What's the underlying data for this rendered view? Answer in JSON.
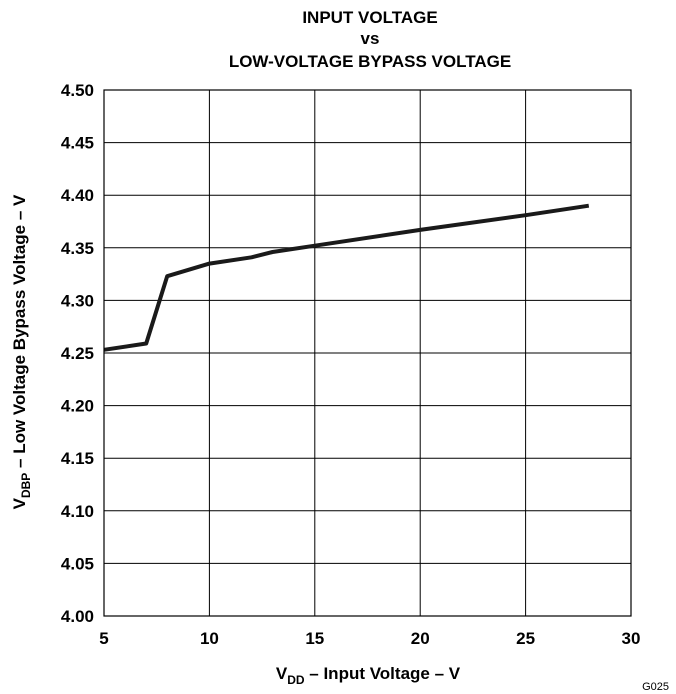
{
  "chart_data": {
    "type": "line",
    "title_lines": [
      "INPUT VOLTAGE",
      "vs",
      "LOW-VOLTAGE BYPASS VOLTAGE"
    ],
    "xlabel": {
      "main": "V",
      "sub": "DD",
      "rest": " – Input Voltage – V"
    },
    "ylabel": {
      "main": "V",
      "sub": "DBP",
      "rest": " – Low Voltage Bypass Voltage – V"
    },
    "xlim": [
      5,
      30
    ],
    "ylim": [
      4.0,
      4.5
    ],
    "x_ticks": [
      "5",
      "10",
      "15",
      "20",
      "25",
      "30"
    ],
    "y_ticks": [
      "4.00",
      "4.05",
      "4.10",
      "4.15",
      "4.20",
      "4.25",
      "4.30",
      "4.35",
      "4.40",
      "4.45",
      "4.50"
    ],
    "grid": true,
    "series": [
      {
        "x": [
          5,
          7,
          8,
          10,
          12,
          13,
          15,
          20,
          25,
          28
        ],
        "y": [
          4.253,
          4.259,
          4.323,
          4.335,
          4.341,
          4.346,
          4.352,
          4.367,
          4.381,
          4.39
        ],
        "color": "#1a1a1a"
      }
    ]
  },
  "figure_id": "G025"
}
